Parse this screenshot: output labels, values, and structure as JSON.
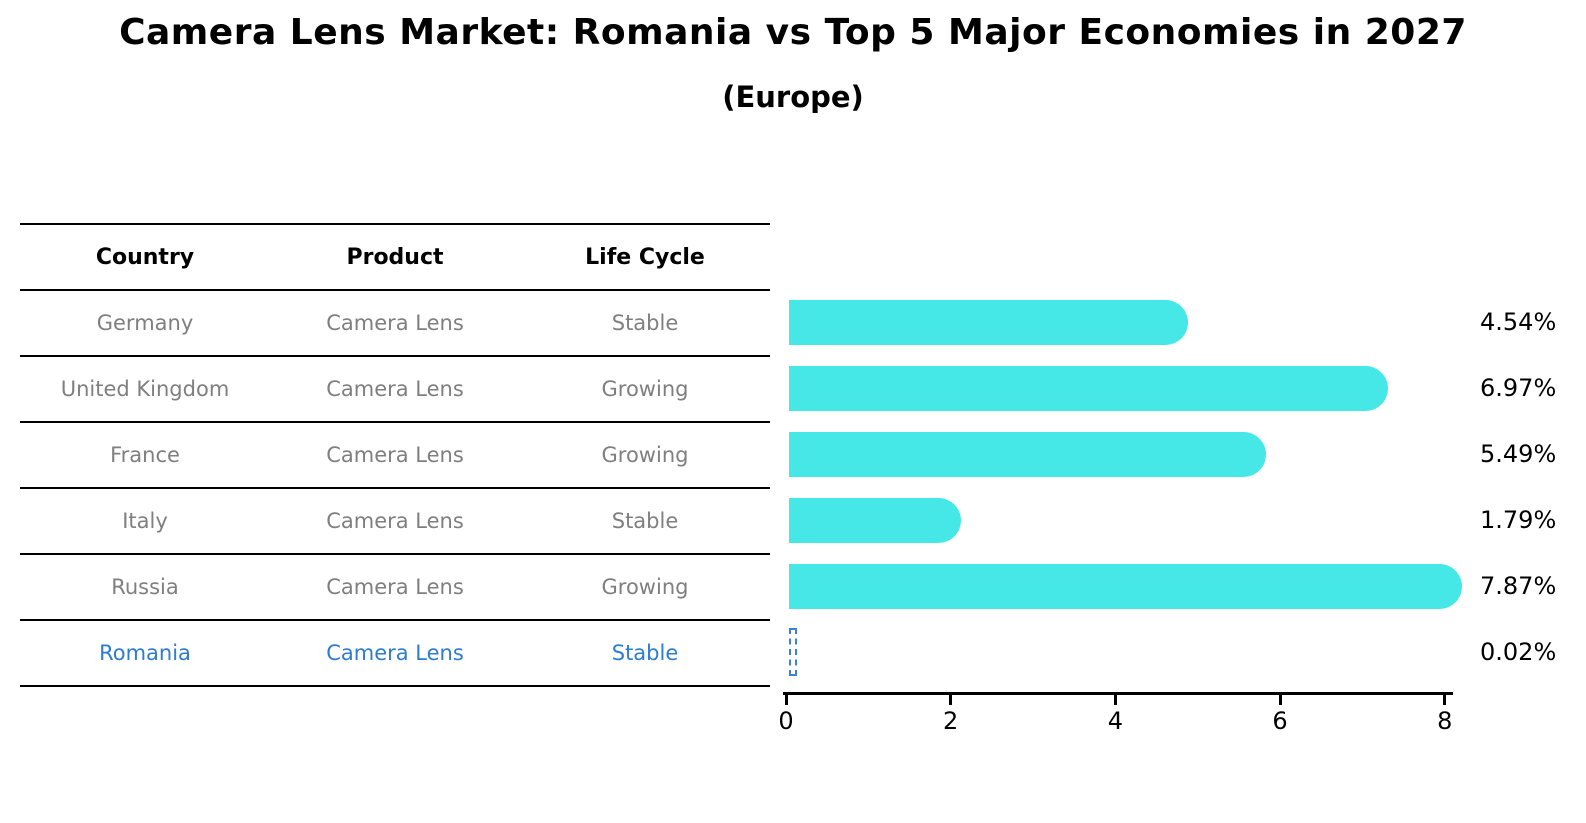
{
  "title": "Camera Lens Market: Romania vs Top 5 Major Economies in 2027",
  "subtitle": "(Europe)",
  "table": {
    "columns": [
      "Country",
      "Product",
      "Life Cycle"
    ],
    "rows": [
      {
        "country": "Germany",
        "product": "Camera Lens",
        "life_cycle": "Stable",
        "highlighted": false
      },
      {
        "country": "United Kingdom",
        "product": "Camera Lens",
        "life_cycle": "Growing",
        "highlighted": false
      },
      {
        "country": "France",
        "product": "Camera Lens",
        "life_cycle": "Growing",
        "highlighted": false
      },
      {
        "country": "Italy",
        "product": "Camera Lens",
        "life_cycle": "Stable",
        "highlighted": false
      },
      {
        "country": "Russia",
        "product": "Camera Lens",
        "life_cycle": "Growing",
        "highlighted": false
      },
      {
        "country": "Romania",
        "product": "Camera Lens",
        "life_cycle": "Stable",
        "highlighted": true
      }
    ],
    "text_color": "#7f7f7f",
    "highlight_text_color": "#2d7cce"
  },
  "chart_data": {
    "type": "bar",
    "orientation": "horizontal",
    "title": "Camera Lens Market: Romania vs Top 5 Major Economies in 2027",
    "subtitle": "(Europe)",
    "categories": [
      "Germany",
      "United Kingdom",
      "France",
      "Italy",
      "Russia",
      "Romania"
    ],
    "values": [
      4.54,
      6.97,
      5.49,
      1.79,
      7.87,
      0.02
    ],
    "value_labels": [
      "4.54%",
      "6.97%",
      "5.49%",
      "1.79%",
      "7.87%",
      "0.02%"
    ],
    "xlabel": "",
    "ylabel": "",
    "xlim": [
      0,
      8.1
    ],
    "xticks": [
      0,
      2,
      4,
      6,
      8
    ],
    "grid": false,
    "legend": false,
    "bar_color": "#45e7e7",
    "highlight_bar_style": "dashed-outline",
    "highlight_bar_color": "#3c82d8",
    "highlight_index": 5
  }
}
